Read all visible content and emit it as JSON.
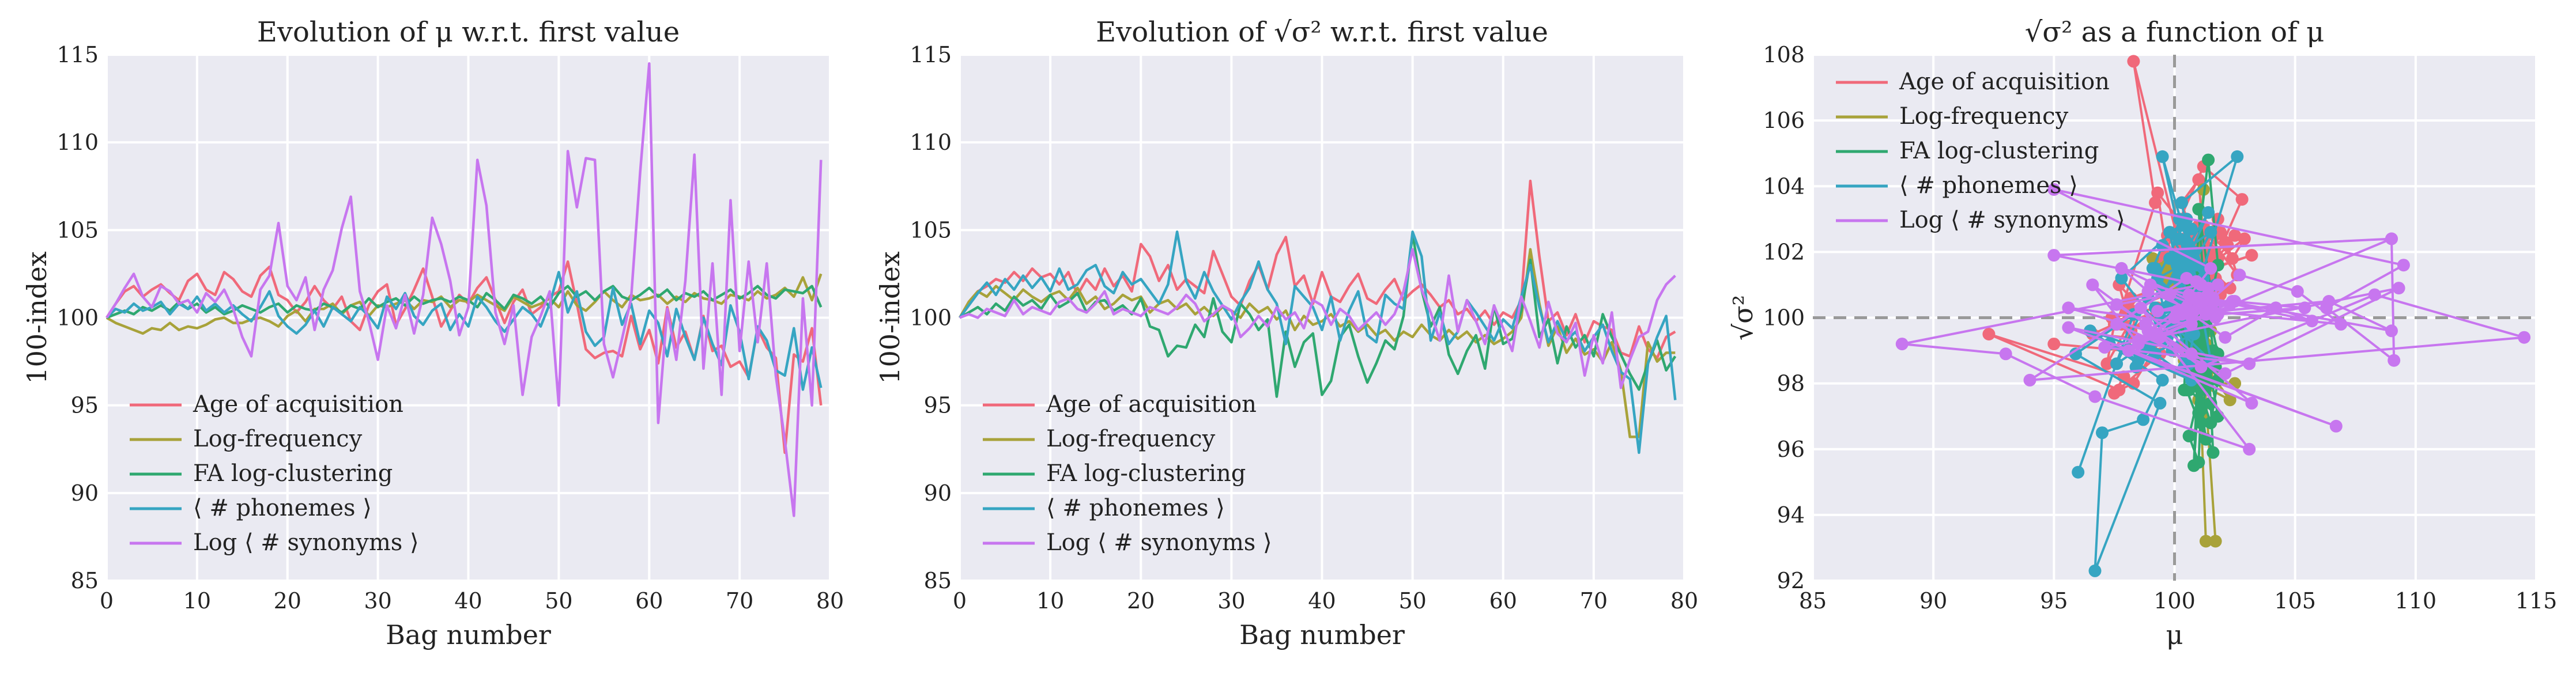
{
  "colors": {
    "background": "#eaeaf2",
    "grid": "#ffffff",
    "aoa": "#f0697a",
    "freq": "#a8a23a",
    "clust": "#2fa870",
    "phon": "#36a5c2",
    "syn": "#c776ef",
    "reference": "#999999"
  },
  "chart_data": [
    {
      "type": "line",
      "title": "Evolution of μ w.r.t. first value",
      "xlabel": "Bag number",
      "ylabel": "100-index",
      "xlim": [
        0,
        80
      ],
      "ylim": [
        85,
        115
      ],
      "xticks": [
        "0",
        "10",
        "20",
        "30",
        "40",
        "50",
        "60",
        "70",
        "80"
      ],
      "yticks": [
        "85",
        "90",
        "95",
        "100",
        "105",
        "110",
        "115"
      ],
      "grid": true,
      "legend": "lower-left",
      "reference_line": 100,
      "x_start": 0,
      "series": [
        {
          "name": "Age of acquisition",
          "color_key": "aoa",
          "values": [
            100,
            100.8,
            101.5,
            101.8,
            101.2,
            101.6,
            101.9,
            101.4,
            101.0,
            102.1,
            102.5,
            101.6,
            101.3,
            102.6,
            102.2,
            101.5,
            101.2,
            102.4,
            102.9,
            101.3,
            101.0,
            100.3,
            100.9,
            101.8,
            101.0,
            100.5,
            101.2,
            99.8,
            99.3,
            100.7,
            101.5,
            101.9,
            99.6,
            100.5,
            101.6,
            102.8,
            101.2,
            99.5,
            100.4,
            101.3,
            100.8,
            101.7,
            102.3,
            101.0,
            99.7,
            100.9,
            101.6,
            100.2,
            100.6,
            101.2,
            101.5,
            103.2,
            100.8,
            98.2,
            97.7,
            98.0,
            98.1,
            97.8,
            100.1,
            98.2,
            99.3,
            97.4,
            100.6,
            98.3,
            99.2,
            97.6,
            100.1,
            98.1,
            98.4,
            97.2,
            97.5,
            96.6,
            99.4,
            98.3,
            97.7,
            92.3,
            97.9,
            97.5,
            99.4,
            95.0
          ]
        },
        {
          "name": "Log-frequency",
          "color_key": "freq",
          "values": [
            100,
            99.7,
            99.5,
            99.3,
            99.1,
            99.4,
            99.3,
            99.7,
            99.3,
            99.5,
            99.4,
            99.6,
            99.9,
            100.0,
            99.7,
            99.7,
            99.9,
            100.0,
            99.8,
            99.5,
            100.1,
            100.4,
            99.8,
            100.5,
            100.5,
            100.8,
            100.2,
            100.7,
            100.9,
            100.1,
            100.7,
            100.6,
            100.8,
            101.0,
            100.5,
            101.0,
            100.9,
            101.2,
            100.6,
            101.0,
            100.9,
            101.3,
            101.0,
            100.7,
            100.4,
            101.2,
            100.9,
            100.6,
            100.8,
            101.1,
            100.6,
            101.5,
            100.7,
            100.4,
            100.9,
            101.5,
            101.0,
            100.6,
            101.3,
            101.0,
            101.1,
            101.3,
            100.8,
            101.2,
            100.9,
            101.4,
            101.1,
            101.0,
            100.8,
            101.3,
            101.2,
            101.0,
            101.5,
            101.1,
            101.3,
            101.7,
            101.2,
            102.3,
            101.0,
            102.5
          ]
        },
        {
          "name": "FA log-clustering",
          "color_key": "clust",
          "values": [
            100,
            100.2,
            100.4,
            100.2,
            100.6,
            100.4,
            100.7,
            100.4,
            100.9,
            100.5,
            100.8,
            100.3,
            100.6,
            100.2,
            100.4,
            100.7,
            100.5,
            100.3,
            100.6,
            100.8,
            100.3,
            100.7,
            100.5,
            100.4,
            100.8,
            100.6,
            100.3,
            100.7,
            100.5,
            101.1,
            100.6,
            100.9,
            101.1,
            100.7,
            101.2,
            100.8,
            101.0,
            101.1,
            100.9,
            101.2,
            101.0,
            100.6,
            101.4,
            101.0,
            100.5,
            101.3,
            101.1,
            100.8,
            101.2,
            100.6,
            101.4,
            101.8,
            101.2,
            101.5,
            101.0,
            101.5,
            101.8,
            101.2,
            101.0,
            101.3,
            101.7,
            101.2,
            101.6,
            101.0,
            101.4,
            101.2,
            101.5,
            101.0,
            101.3,
            101.6,
            101.1,
            101.4,
            101.8,
            101.3,
            101.1,
            101.6,
            101.5,
            101.4,
            101.8,
            100.6
          ]
        },
        {
          "name": "⟨ # phonemes ⟩",
          "color_key": "phon",
          "values": [
            100,
            100.5,
            100.3,
            100.8,
            100.4,
            100.6,
            100.9,
            100.2,
            100.8,
            100.5,
            101.2,
            100.4,
            100.8,
            100.3,
            100.7,
            100.2,
            99.8,
            100.6,
            101.5,
            100.1,
            99.5,
            99.1,
            99.6,
            100.4,
            99.5,
            100.6,
            100.2,
            99.8,
            100.6,
            100.1,
            99.4,
            101.2,
            100.5,
            101.4,
            100.1,
            99.6,
            100.4,
            100.8,
            99.3,
            100.2,
            99.5,
            101.2,
            100.6,
            99.8,
            99.2,
            99.9,
            100.6,
            100.2,
            99.5,
            100.8,
            102.6,
            100.3,
            101.5,
            99.2,
            98.4,
            98.9,
            101.7,
            99.6,
            100.8,
            98.5,
            100.4,
            99.7,
            97.8,
            100.5,
            98.9,
            97.6,
            100.0,
            98.5,
            97.3,
            100.7,
            99.2,
            96.5,
            99.5,
            98.7,
            97.0,
            96.7,
            99.4,
            95.9,
            98.3,
            96.0
          ]
        },
        {
          "name": "Log ⟨ # synonyms ⟩",
          "color_key": "syn",
          "values": [
            100,
            100.8,
            101.7,
            102.5,
            101.2,
            100.6,
            101.8,
            101.5,
            100.8,
            101.0,
            100.3,
            101.4,
            100.9,
            101.6,
            100.5,
            98.9,
            97.8,
            101.6,
            102.4,
            105.4,
            101.8,
            101.0,
            102.3,
            99.3,
            101.6,
            102.7,
            105.1,
            106.9,
            101.5,
            99.8,
            97.6,
            100.7,
            99.4,
            101.3,
            99.1,
            101.3,
            105.7,
            104.2,
            102.1,
            99.0,
            100.6,
            109.0,
            106.4,
            100.3,
            98.5,
            100.7,
            95.6,
            98.9,
            100.1,
            101.5,
            95.0,
            109.5,
            106.3,
            109.1,
            109.0,
            98.5,
            96.6,
            98.8,
            101.1,
            108.3,
            114.5,
            94.0,
            100.5,
            97.6,
            102.1,
            109.3,
            97.1,
            103.1,
            95.6,
            106.7,
            98.1,
            103.2,
            98.6,
            103.1,
            96.7,
            93.0,
            88.7,
            101.1,
            95.0,
            109.0
          ]
        }
      ]
    },
    {
      "type": "line",
      "title": "Evolution of √σ² w.r.t. first value",
      "xlabel": "Bag number",
      "ylabel": "100-index",
      "xlim": [
        0,
        80
      ],
      "ylim": [
        85,
        115
      ],
      "xticks": [
        "0",
        "10",
        "20",
        "30",
        "40",
        "50",
        "60",
        "70",
        "80"
      ],
      "yticks": [
        "85",
        "90",
        "95",
        "100",
        "105",
        "110",
        "115"
      ],
      "grid": true,
      "legend": "lower-left",
      "reference_line": 100,
      "x_start": 0,
      "series": [
        {
          "name": "Age of acquisition",
          "color_key": "aoa",
          "values": [
            100,
            100.9,
            101.5,
            101.8,
            102.2,
            102.0,
            102.6,
            102.1,
            102.8,
            102.3,
            102.5,
            101.9,
            102.6,
            101.3,
            102.2,
            101.6,
            102.8,
            101.8,
            102.4,
            101.5,
            104.2,
            103.5,
            102.1,
            103.0,
            101.6,
            102.2,
            101.8,
            101.4,
            103.8,
            102.5,
            101.2,
            100.7,
            102.1,
            103.0,
            101.6,
            103.6,
            104.6,
            101.8,
            102.4,
            100.8,
            102.6,
            101.2,
            100.9,
            101.8,
            102.5,
            101.1,
            100.8,
            101.6,
            102.2,
            101.0,
            101.5,
            101.9,
            101.3,
            100.6,
            101.0,
            100.2,
            100.5,
            99.8,
            100.4,
            99.6,
            100.3,
            100.0,
            101.0,
            107.8,
            103.5,
            99.8,
            100.3,
            99.0,
            100.2,
            98.6,
            99.8,
            99.5,
            99.3,
            98.0,
            97.8,
            99.5,
            98.2,
            97.7,
            98.9,
            99.2
          ]
        },
        {
          "name": "Log-frequency",
          "color_key": "freq",
          "values": [
            100,
            100.9,
            101.5,
            101.2,
            101.8,
            101.4,
            101.0,
            101.6,
            101.2,
            100.9,
            101.3,
            101.5,
            101.0,
            101.7,
            100.8,
            101.2,
            100.5,
            100.8,
            101.3,
            101.0,
            101.2,
            100.3,
            100.8,
            101.0,
            100.5,
            100.8,
            100.2,
            100.6,
            100.1,
            100.6,
            100.4,
            100.0,
            100.8,
            100.3,
            100.6,
            99.9,
            100.4,
            99.3,
            100.1,
            99.6,
            99.8,
            100.2,
            99.5,
            99.8,
            99.2,
            99.6,
            99.0,
            99.3,
            98.7,
            99.2,
            98.9,
            99.6,
            99.0,
            98.7,
            99.3,
            98.8,
            99.2,
            98.6,
            99.0,
            98.5,
            98.8,
            99.2,
            100.0,
            103.9,
            100.8,
            98.4,
            99.5,
            98.0,
            98.8,
            97.9,
            98.2,
            97.5,
            98.6,
            97.0,
            93.2,
            93.2,
            98.6,
            97.5,
            98.0,
            98.0
          ]
        },
        {
          "name": "FA log-clustering",
          "color_key": "clust",
          "values": [
            100,
            100.3,
            100.6,
            100.2,
            100.8,
            100.4,
            101.2,
            100.7,
            101.0,
            100.5,
            101.3,
            100.6,
            100.9,
            101.4,
            100.3,
            100.9,
            101.0,
            100.4,
            100.7,
            100.2,
            101.1,
            99.5,
            99.3,
            97.8,
            98.4,
            98.3,
            99.6,
            98.9,
            101.1,
            99.2,
            98.6,
            100.8,
            100.2,
            99.3,
            99.9,
            95.5,
            99.2,
            97.2,
            98.6,
            99.1,
            95.6,
            96.4,
            98.9,
            99.6,
            97.8,
            96.3,
            97.4,
            98.7,
            98.2,
            100.1,
            104.8,
            101.6,
            99.5,
            100.6,
            97.9,
            96.8,
            98.1,
            99.0,
            97.1,
            100.7,
            98.5,
            98.8,
            100.4,
            103.3,
            98.9,
            99.9,
            97.4,
            99.5,
            98.3,
            99.0,
            97.8,
            100.2,
            98.9,
            97.9,
            96.8,
            95.9,
            97.4,
            98.7,
            97.0,
            97.8
          ]
        },
        {
          "name": "⟨ # phonemes ⟩",
          "color_key": "phon",
          "values": [
            100,
            100.7,
            101.4,
            102.0,
            101.3,
            102.2,
            101.6,
            102.4,
            101.7,
            102.3,
            101.5,
            102.8,
            101.6,
            101.9,
            102.7,
            103.0,
            101.8,
            101.4,
            102.6,
            101.9,
            102.2,
            101.5,
            100.8,
            101.9,
            104.9,
            102.1,
            101.1,
            102.6,
            101.5,
            100.7,
            99.9,
            100.9,
            101.7,
            103.2,
            101.6,
            100.8,
            98.5,
            101.8,
            101.2,
            100.6,
            99.3,
            101.2,
            98.7,
            100.4,
            101.5,
            99.0,
            98.6,
            101.3,
            100.8,
            100.5,
            104.9,
            103.5,
            98.7,
            100.3,
            98.5,
            99.2,
            101.0,
            100.3,
            99.5,
            98.7,
            99.9,
            99.4,
            101.2,
            103.0,
            100.6,
            98.6,
            99.8,
            98.7,
            99.2,
            98.1,
            98.9,
            99.6,
            98.1,
            96.9,
            96.5,
            92.3,
            97.4,
            98.9,
            100.1,
            95.3
          ]
        },
        {
          "name": "Log ⟨ # synonyms ⟩",
          "color_key": "syn",
          "values": [
            100,
            100.2,
            100.0,
            100.5,
            100.3,
            100.1,
            101.0,
            100.2,
            100.6,
            100.4,
            100.2,
            100.9,
            101.1,
            100.5,
            100.3,
            100.8,
            101.5,
            100.2,
            100.5,
            100.3,
            100.1,
            100.6,
            100.4,
            100.2,
            100.6,
            101.3,
            100.8,
            99.8,
            100.2,
            100.7,
            100.4,
            98.9,
            99.4,
            100.1,
            99.5,
            100.6,
            99.9,
            100.3,
            99.4,
            101.0,
            100.7,
            99.6,
            100.5,
            100.1,
            99.3,
            99.8,
            100.3,
            99.6,
            100.2,
            101.5,
            103.9,
            101.6,
            100.3,
            98.7,
            102.4,
            99.2,
            101.0,
            99.8,
            98.5,
            100.7,
            99.4,
            98.1,
            101.2,
            99.8,
            98.3,
            100.9,
            99.1,
            98.6,
            99.7,
            96.7,
            99.0,
            97.4,
            100.3,
            96.0,
            97.6,
            98.9,
            99.2,
            101.0,
            101.9,
            102.4
          ]
        }
      ]
    },
    {
      "type": "scatter",
      "title": "√σ² as a function of μ",
      "xlabel": "μ",
      "ylabel": "√σ²",
      "xlim": [
        85,
        115
      ],
      "ylim": [
        92,
        108
      ],
      "xticks": [
        "85",
        "90",
        "95",
        "100",
        "105",
        "110",
        "115"
      ],
      "yticks": [
        "92",
        "94",
        "96",
        "98",
        "100",
        "102",
        "104",
        "106",
        "108"
      ],
      "grid": true,
      "legend": "top-left",
      "reference_lines": {
        "x": 100,
        "y": 100
      },
      "markers": "connected points",
      "x_source": "μ values of each series (panel 1)",
      "y_source": "√σ² values of each series (panel 2)"
    }
  ]
}
